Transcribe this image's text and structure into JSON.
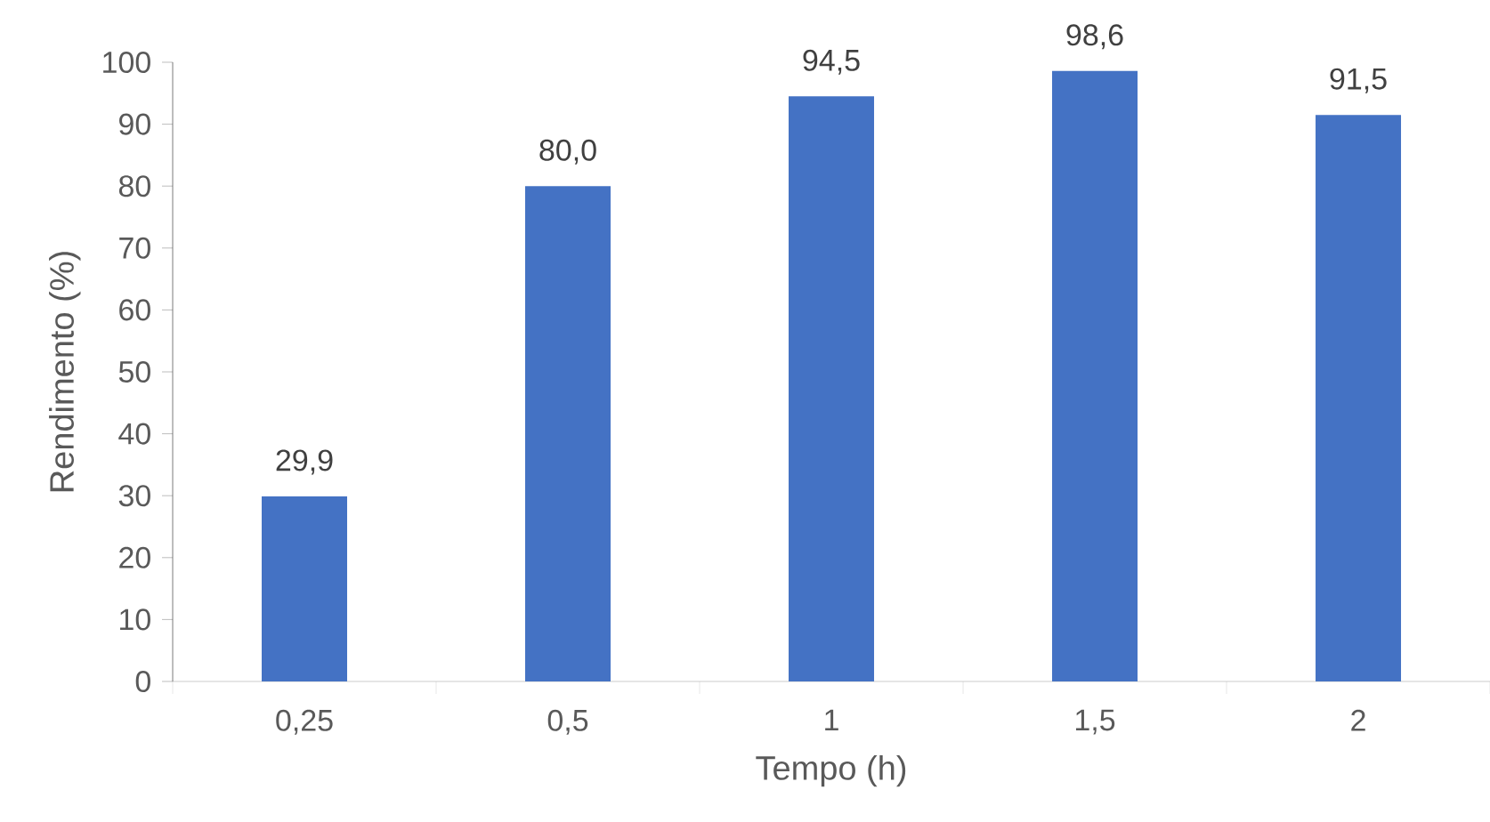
{
  "chart_data": {
    "type": "bar",
    "xlabel": "Tempo (h)",
    "ylabel": "Rendimento (%)",
    "categories": [
      "0,25",
      "0,5",
      "1",
      "1,5",
      "2"
    ],
    "values": [
      29.9,
      80.0,
      94.5,
      98.6,
      91.5
    ],
    "value_labels": [
      "29,9",
      "80,0",
      "94,5",
      "98,6",
      "91,5"
    ],
    "color": "#4472c4",
    "ylim": [
      0,
      100
    ],
    "yticks": [
      0,
      10,
      20,
      30,
      40,
      50,
      60,
      70,
      80,
      90,
      100
    ],
    "grid": false
  }
}
